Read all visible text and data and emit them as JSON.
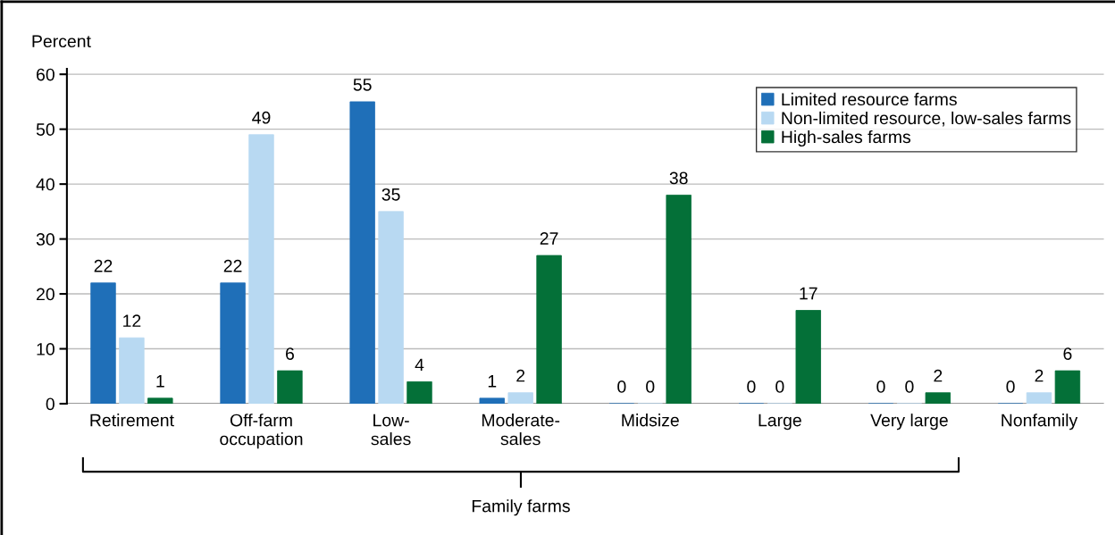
{
  "chart_data": {
    "type": "bar",
    "ylabel": "Percent",
    "categories": [
      "Retirement",
      "Off-farm\noccupation",
      "Low-\nsales",
      "Moderate-\nsales",
      "Midsize",
      "Large",
      "Very large",
      "Nonfamily"
    ],
    "series": [
      {
        "name": "Limited resource farms",
        "color": "#1f6fb8",
        "values": [
          22,
          22,
          55,
          1,
          0,
          0,
          0,
          0
        ]
      },
      {
        "name": "Non-limited resource, low-sales farms",
        "color": "#b8d9f2",
        "values": [
          12,
          49,
          35,
          2,
          0,
          0,
          0,
          2
        ]
      },
      {
        "name": "High-sales farms",
        "color": "#047038",
        "values": [
          1,
          6,
          4,
          27,
          38,
          17,
          2,
          6
        ]
      }
    ],
    "ylim": [
      0,
      61
    ],
    "yticks": [
      0,
      10,
      20,
      30,
      40,
      50,
      60
    ],
    "grid": "y",
    "legend": "top right",
    "data_labels": true,
    "annotations": [
      "Family farms"
    ]
  }
}
